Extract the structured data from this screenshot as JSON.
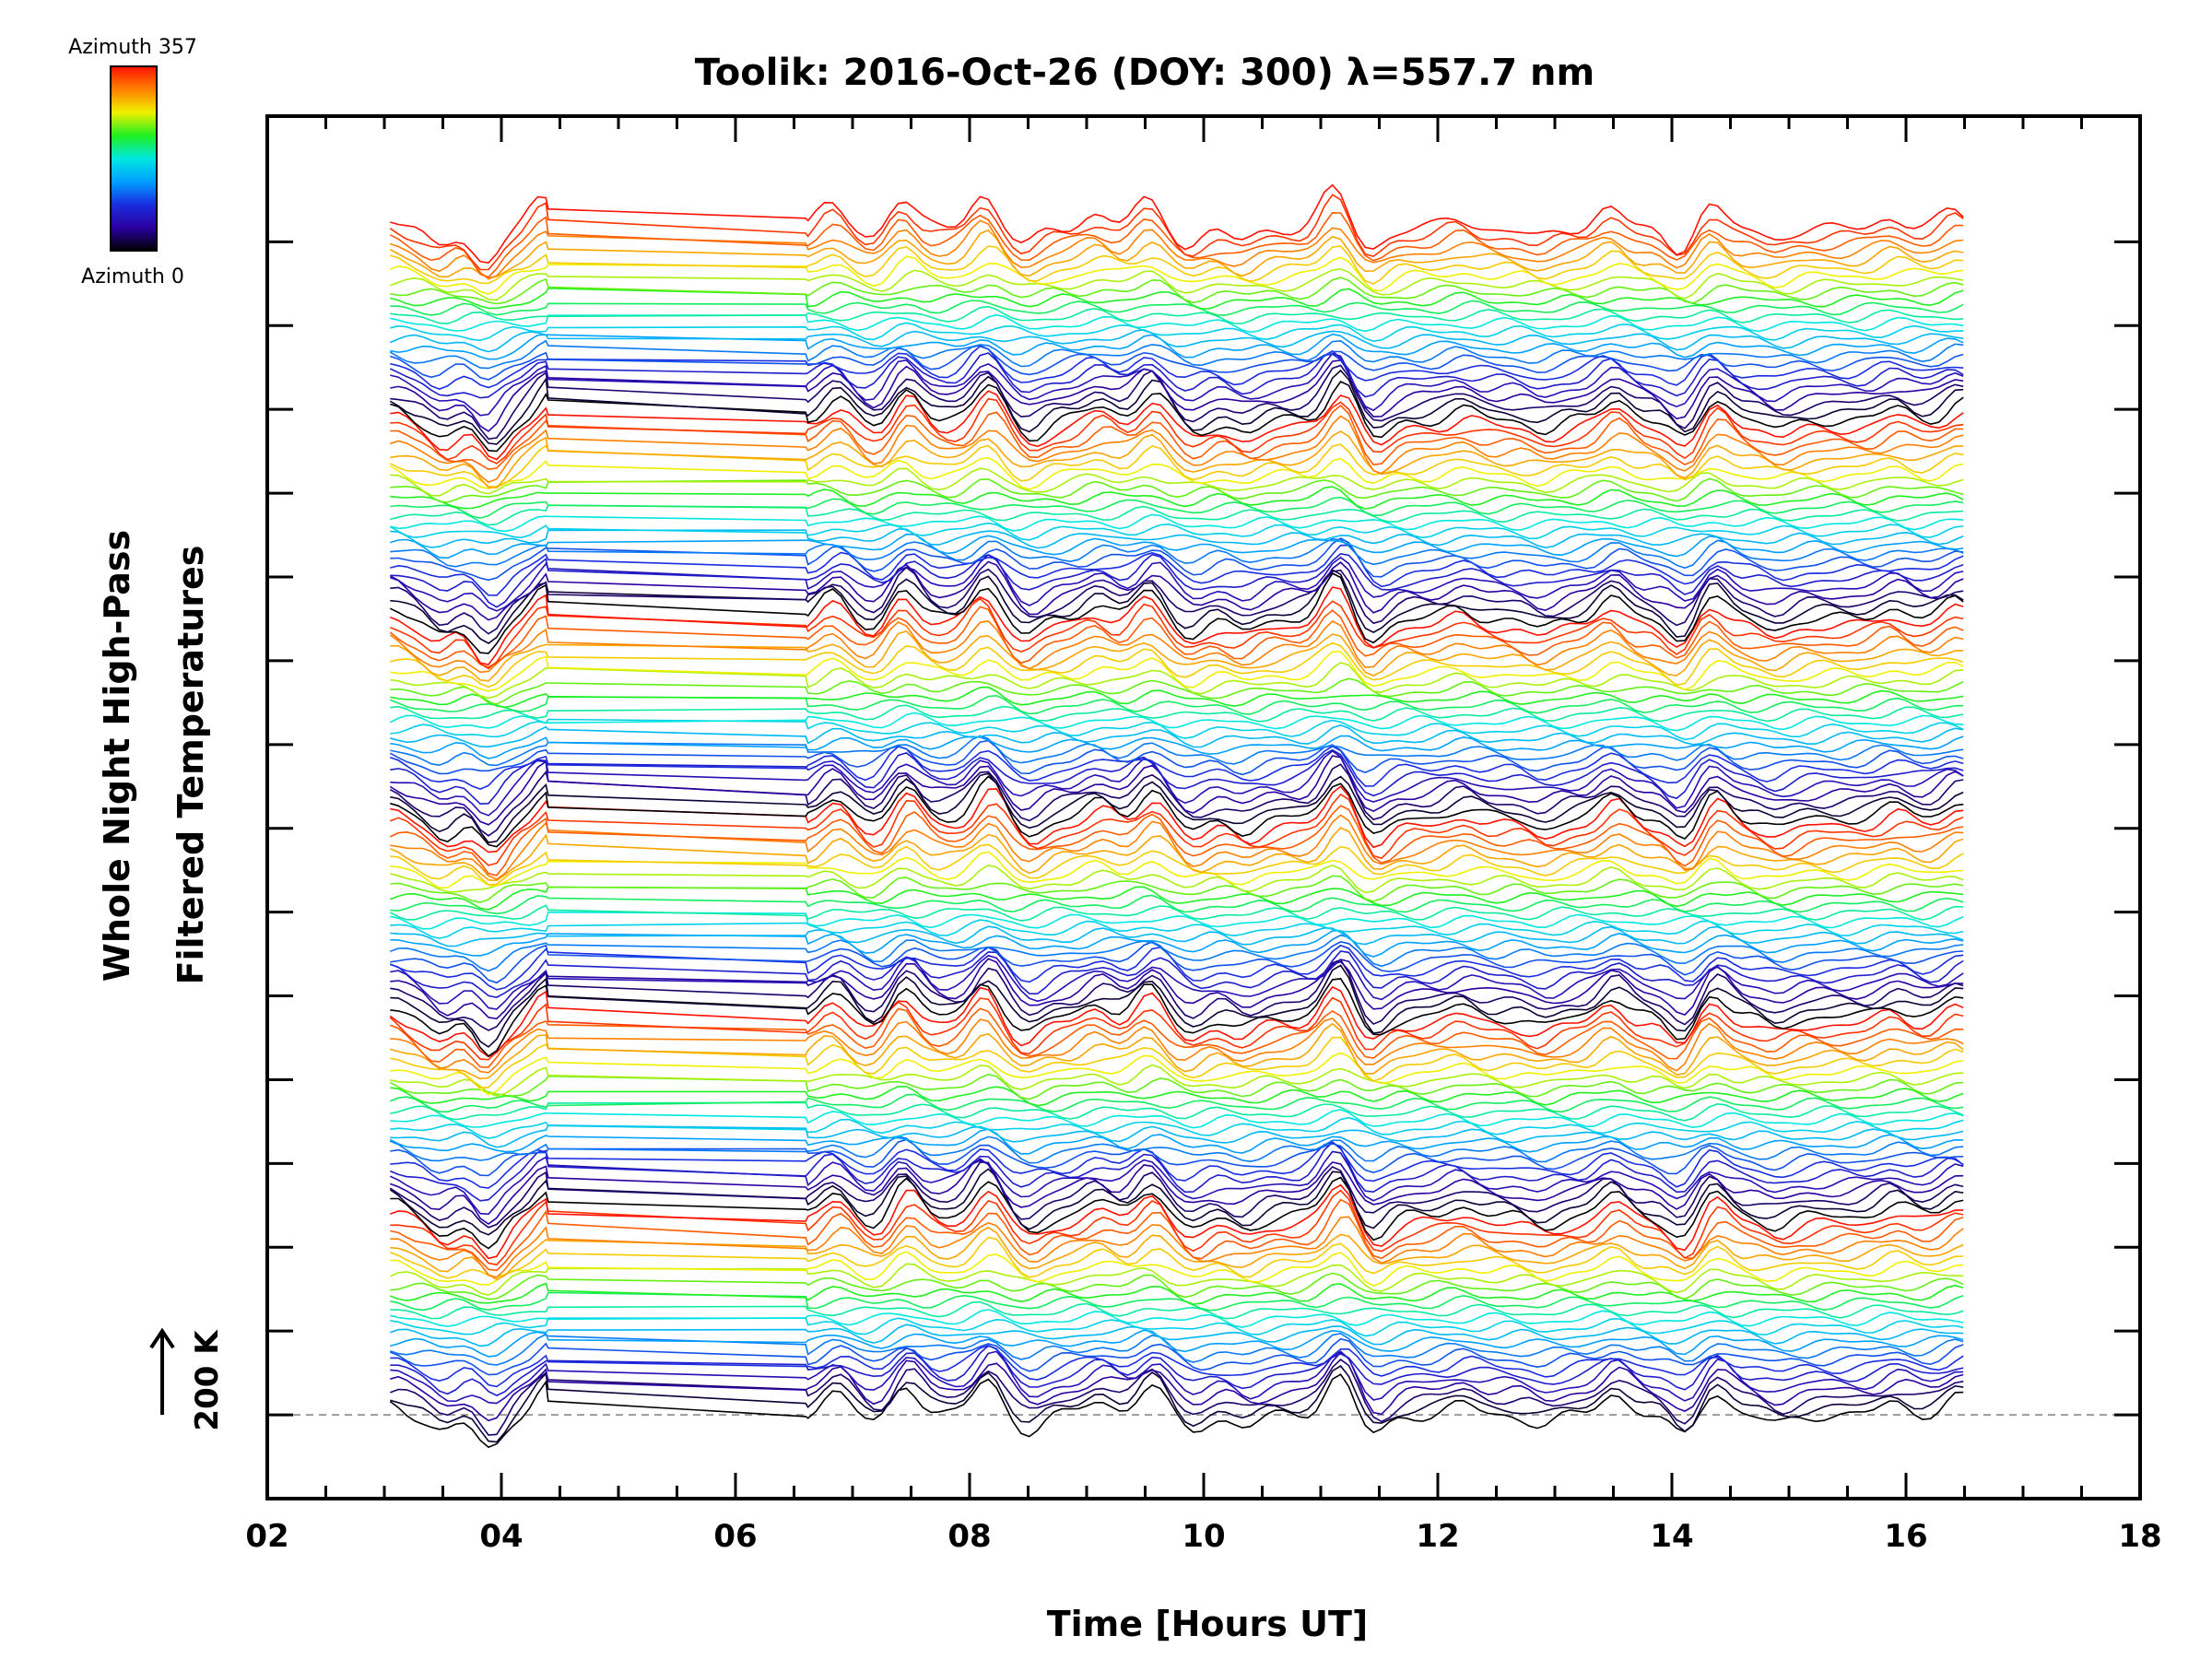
{
  "chart_data": {
    "type": "line",
    "title": "Toolik: 2016-Oct-26 (DOY: 300) λ=557.7 nm",
    "xlabel": "Time [Hours UT]",
    "ylabel_line1": "Whole Night High-Pass",
    "ylabel_line2": "Filtered Temperatures",
    "xlim": [
      2,
      18
    ],
    "ylim": [
      -1,
      15.5
    ],
    "x_tick_labels": [
      {
        "value": 2,
        "label": "02"
      },
      {
        "value": 4,
        "label": "04"
      },
      {
        "value": 6,
        "label": "06"
      },
      {
        "value": 8,
        "label": "08"
      },
      {
        "value": 10,
        "label": "10"
      },
      {
        "value": 12,
        "label": "12"
      },
      {
        "value": 14,
        "label": "14"
      },
      {
        "value": 16,
        "label": "16"
      },
      {
        "value": 18,
        "label": "18"
      }
    ],
    "x_minor_step": 0.5,
    "y_tick_values": [
      0,
      1,
      2,
      3,
      4,
      5,
      6,
      7,
      8,
      9,
      10,
      11,
      12,
      13,
      14
    ],
    "y_tick_labels": [],
    "baseline_value": 0,
    "scale_bar_label": "200 K",
    "scale_bar_units": 1,
    "colorbar": {
      "label_top": "Azimuth 357",
      "label_bottom": "Azimuth 0",
      "min": 0,
      "max": 357,
      "colormap": [
        "#000000",
        "#2a00a0",
        "#1a2de0",
        "#00a0ff",
        "#00e8e0",
        "#20f020",
        "#f0f000",
        "#ff8000",
        "#ff1000"
      ]
    },
    "series_description": "Stacked high-pass filtered temperature traces, one per azimuth, offset vertically; color encodes azimuth",
    "time_start": 3.05,
    "time_end": 16.55,
    "data_gap": [
      4.4,
      6.6
    ],
    "n_series": 150,
    "series_offset": 0.095,
    "offset_units": "multiples of 200 K",
    "perturbation_events": [
      {
        "t": 3.05,
        "a": 0.15
      },
      {
        "t": 3.5,
        "a": -0.22
      },
      {
        "t": 3.9,
        "a": -0.4
      },
      {
        "t": 4.4,
        "a": 0.35
      },
      {
        "t": 6.85,
        "a": 0.28
      },
      {
        "t": 7.2,
        "a": -0.12
      },
      {
        "t": 7.45,
        "a": 0.38
      },
      {
        "t": 8.15,
        "a": 0.42
      },
      {
        "t": 8.5,
        "a": -0.2
      },
      {
        "t": 9.1,
        "a": 0.18
      },
      {
        "t": 9.55,
        "a": 0.34
      },
      {
        "t": 9.9,
        "a": -0.18
      },
      {
        "t": 10.35,
        "a": -0.15
      },
      {
        "t": 11.15,
        "a": 0.48
      },
      {
        "t": 11.45,
        "a": -0.25
      },
      {
        "t": 12.2,
        "a": 0.12
      },
      {
        "t": 12.9,
        "a": -0.12
      },
      {
        "t": 13.5,
        "a": 0.26
      },
      {
        "t": 14.1,
        "a": -0.28
      },
      {
        "t": 14.35,
        "a": 0.3
      },
      {
        "t": 14.9,
        "a": -0.12
      },
      {
        "t": 15.9,
        "a": 0.14
      },
      {
        "t": 16.45,
        "a": 0.22
      }
    ]
  }
}
